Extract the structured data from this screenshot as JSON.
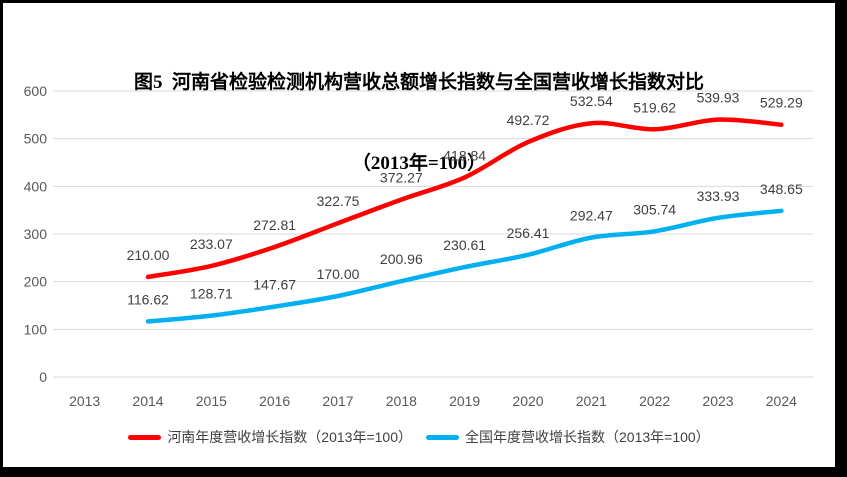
{
  "chart_data": {
    "type": "line",
    "title": "图5  河南省检验检测机构营收总额增长指数与全国营收增长指数对比",
    "subtitle": "（2013年=100）",
    "categories": [
      "2013",
      "2014",
      "2015",
      "2016",
      "2017",
      "2018",
      "2019",
      "2020",
      "2021",
      "2022",
      "2023",
      "2024"
    ],
    "series": [
      {
        "key": "henan",
        "name": "河南年度营收增长指数（2013年=100）",
        "color": "#FF0000",
        "values": [
          null,
          210.0,
          233.07,
          272.81,
          322.75,
          372.27,
          418.84,
          492.72,
          532.54,
          519.62,
          539.93,
          529.29
        ]
      },
      {
        "key": "national",
        "name": "全国年度营收增长指数（2013年=100）",
        "color": "#00B0F0",
        "values": [
          null,
          116.62,
          128.71,
          147.67,
          170.0,
          200.96,
          230.61,
          256.41,
          292.47,
          305.74,
          333.93,
          348.65
        ]
      }
    ],
    "ylim": [
      0,
      600
    ],
    "y_ticks": [
      0,
      100,
      200,
      300,
      400,
      500,
      600
    ],
    "grid": true,
    "gridline_color": "#D9D9D9",
    "tick_label_color": "#595959",
    "data_label_color": "#404040",
    "data_label_decimals": 2,
    "legend_position": "bottom",
    "frame_color": "#000000"
  }
}
